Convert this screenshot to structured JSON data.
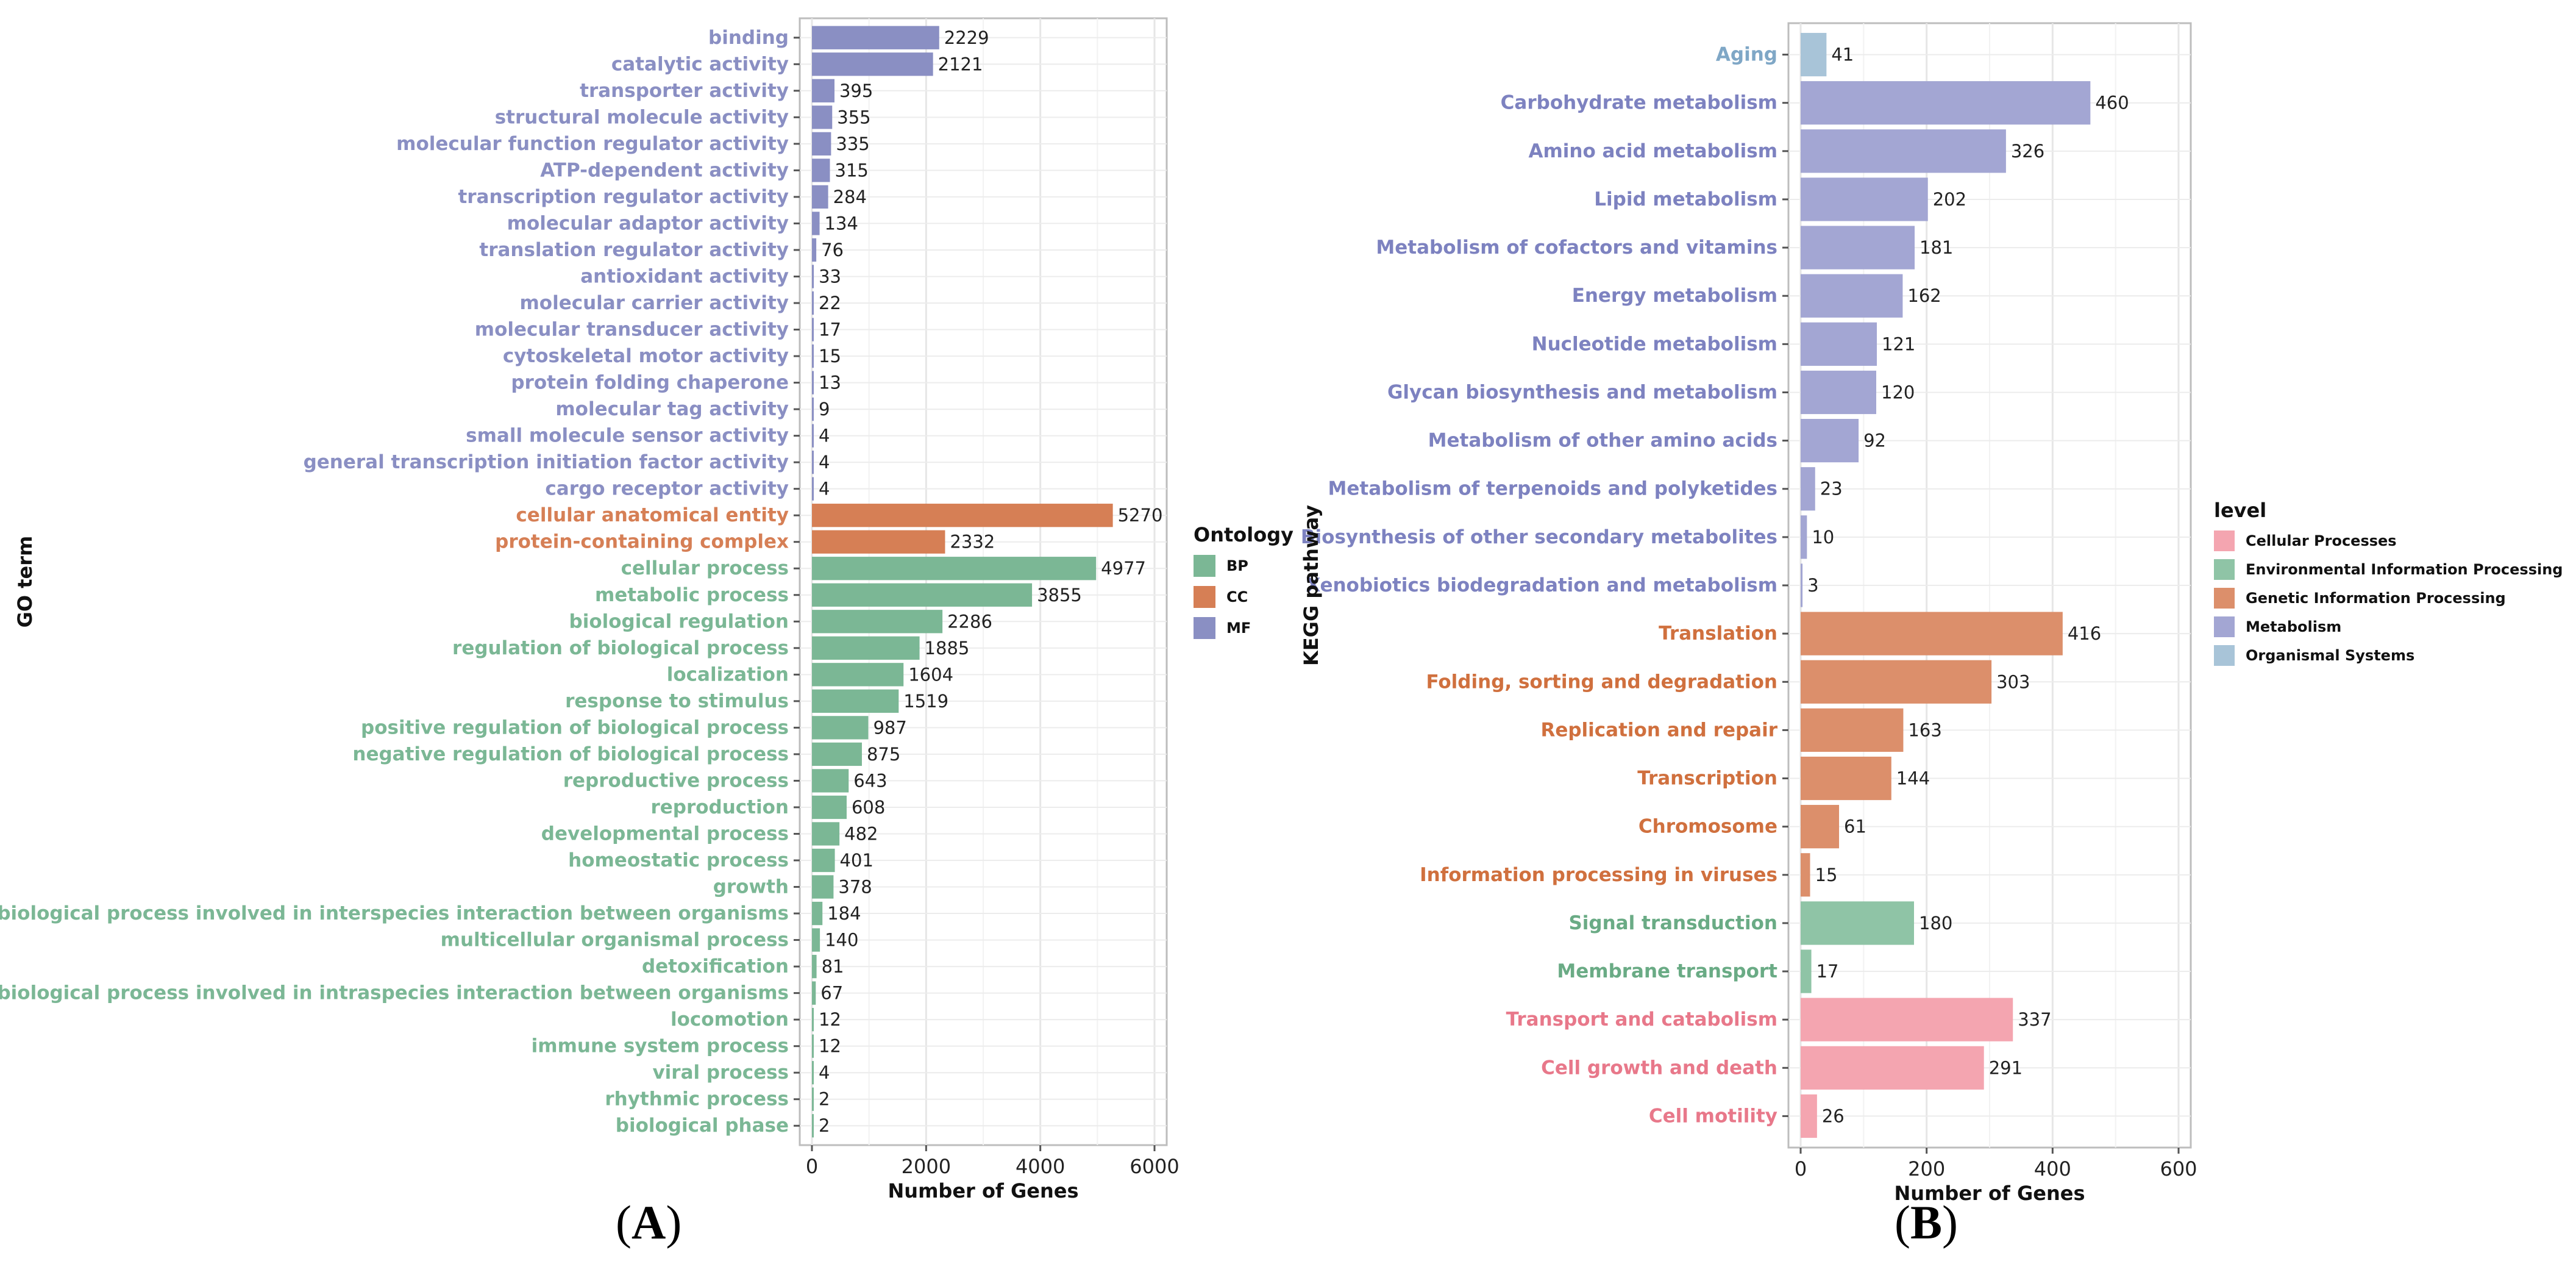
{
  "chart_data": [
    {
      "type": "bar",
      "orientation": "horizontal",
      "panel_label": "A",
      "title": "",
      "xlabel": "Number of Genes",
      "ylabel": "GO term",
      "xlim": [
        0,
        6000
      ],
      "xticks": [
        0,
        2000,
        4000,
        6000
      ],
      "grid": true,
      "legend": {
        "title": "Ontology",
        "placement": "right",
        "entries": [
          "BP",
          "CC",
          "MF"
        ]
      },
      "colors": {
        "BP": "#7bb795",
        "CC": "#d67f55",
        "MF": "#8a8fc3"
      },
      "categories": [
        {
          "label": "binding",
          "value": 2229,
          "group": "MF"
        },
        {
          "label": "catalytic activity",
          "value": 2121,
          "group": "MF"
        },
        {
          "label": "transporter activity",
          "value": 395,
          "group": "MF"
        },
        {
          "label": "structural molecule activity",
          "value": 355,
          "group": "MF"
        },
        {
          "label": "molecular function regulator activity",
          "value": 335,
          "group": "MF"
        },
        {
          "label": "ATP-dependent activity",
          "value": 315,
          "group": "MF"
        },
        {
          "label": "transcription regulator activity",
          "value": 284,
          "group": "MF"
        },
        {
          "label": "molecular adaptor activity",
          "value": 134,
          "group": "MF"
        },
        {
          "label": "translation regulator activity",
          "value": 76,
          "group": "MF"
        },
        {
          "label": "antioxidant activity",
          "value": 33,
          "group": "MF"
        },
        {
          "label": "molecular carrier activity",
          "value": 22,
          "group": "MF"
        },
        {
          "label": "molecular transducer activity",
          "value": 17,
          "group": "MF"
        },
        {
          "label": "cytoskeletal motor activity",
          "value": 15,
          "group": "MF"
        },
        {
          "label": "protein folding chaperone",
          "value": 13,
          "group": "MF"
        },
        {
          "label": "molecular tag activity",
          "value": 9,
          "group": "MF"
        },
        {
          "label": "small molecule sensor activity",
          "value": 4,
          "group": "MF"
        },
        {
          "label": "general transcription initiation factor activity",
          "value": 4,
          "group": "MF"
        },
        {
          "label": "cargo receptor activity",
          "value": 4,
          "group": "MF"
        },
        {
          "label": "cellular anatomical entity",
          "value": 5270,
          "group": "CC"
        },
        {
          "label": "protein-containing complex",
          "value": 2332,
          "group": "CC"
        },
        {
          "label": "cellular process",
          "value": 4977,
          "group": "BP"
        },
        {
          "label": "metabolic process",
          "value": 3855,
          "group": "BP"
        },
        {
          "label": "biological regulation",
          "value": 2286,
          "group": "BP"
        },
        {
          "label": "regulation of biological process",
          "value": 1885,
          "group": "BP"
        },
        {
          "label": "localization",
          "value": 1604,
          "group": "BP"
        },
        {
          "label": "response to stimulus",
          "value": 1519,
          "group": "BP"
        },
        {
          "label": "positive regulation of biological process",
          "value": 987,
          "group": "BP"
        },
        {
          "label": "negative regulation of biological process",
          "value": 875,
          "group": "BP"
        },
        {
          "label": "reproductive process",
          "value": 643,
          "group": "BP"
        },
        {
          "label": "reproduction",
          "value": 608,
          "group": "BP"
        },
        {
          "label": "developmental process",
          "value": 482,
          "group": "BP"
        },
        {
          "label": "homeostatic process",
          "value": 401,
          "group": "BP"
        },
        {
          "label": "growth",
          "value": 378,
          "group": "BP"
        },
        {
          "label": "biological process involved in interspecies interaction between organisms",
          "value": 184,
          "group": "BP"
        },
        {
          "label": "multicellular organismal process",
          "value": 140,
          "group": "BP"
        },
        {
          "label": "detoxification",
          "value": 81,
          "group": "BP"
        },
        {
          "label": "biological process involved in intraspecies interaction between organisms",
          "value": 67,
          "group": "BP"
        },
        {
          "label": "locomotion",
          "value": 12,
          "group": "BP"
        },
        {
          "label": "immune system process",
          "value": 12,
          "group": "BP"
        },
        {
          "label": "viral process",
          "value": 4,
          "group": "BP"
        },
        {
          "label": "rhythmic process",
          "value": 2,
          "group": "BP"
        },
        {
          "label": "biological phase",
          "value": 2,
          "group": "BP"
        }
      ]
    },
    {
      "type": "bar",
      "orientation": "horizontal",
      "panel_label": "B",
      "title": "",
      "xlabel": "Number of Genes",
      "ylabel": "KEGG pathway",
      "xlim": [
        0,
        600
      ],
      "xticks": [
        0,
        200,
        400,
        600
      ],
      "grid": true,
      "legend": {
        "title": "level",
        "placement": "right",
        "entries": [
          "Cellular Processes",
          "Environmental Information Processing",
          "Genetic Information Processing",
          "Metabolism",
          "Organismal Systems"
        ]
      },
      "colors": {
        "Cellular Processes": "#f4a5b0",
        "Environmental Information Processing": "#8fc4a6",
        "Genetic Information Processing": "#dc8f6b",
        "Metabolism": "#a3a6d3",
        "Organismal Systems": "#a8c4d8"
      },
      "label_colors": {
        "Cellular Processes": "#e8788a",
        "Environmental Information Processing": "#6aab85",
        "Genetic Information Processing": "#d0703e",
        "Metabolism": "#7d82c0",
        "Organismal Systems": "#7fa7c6"
      },
      "categories": [
        {
          "label": "Aging",
          "value": 41,
          "group": "Organismal Systems"
        },
        {
          "label": "Carbohydrate metabolism",
          "value": 460,
          "group": "Metabolism"
        },
        {
          "label": "Amino acid metabolism",
          "value": 326,
          "group": "Metabolism"
        },
        {
          "label": "Lipid metabolism",
          "value": 202,
          "group": "Metabolism"
        },
        {
          "label": "Metabolism of cofactors and vitamins",
          "value": 181,
          "group": "Metabolism"
        },
        {
          "label": "Energy metabolism",
          "value": 162,
          "group": "Metabolism"
        },
        {
          "label": "Nucleotide metabolism",
          "value": 121,
          "group": "Metabolism"
        },
        {
          "label": "Glycan biosynthesis and metabolism",
          "value": 120,
          "group": "Metabolism"
        },
        {
          "label": "Metabolism of other amino acids",
          "value": 92,
          "group": "Metabolism"
        },
        {
          "label": "Metabolism of terpenoids and polyketides",
          "value": 23,
          "group": "Metabolism"
        },
        {
          "label": "Biosynthesis of other secondary metabolites",
          "value": 10,
          "group": "Metabolism"
        },
        {
          "label": "Xenobiotics biodegradation and metabolism",
          "value": 3,
          "group": "Metabolism"
        },
        {
          "label": "Translation",
          "value": 416,
          "group": "Genetic Information Processing"
        },
        {
          "label": "Folding, sorting and degradation",
          "value": 303,
          "group": "Genetic Information Processing"
        },
        {
          "label": "Replication and repair",
          "value": 163,
          "group": "Genetic Information Processing"
        },
        {
          "label": "Transcription",
          "value": 144,
          "group": "Genetic Information Processing"
        },
        {
          "label": "Chromosome",
          "value": 61,
          "group": "Genetic Information Processing"
        },
        {
          "label": "Information processing in viruses",
          "value": 15,
          "group": "Genetic Information Processing"
        },
        {
          "label": "Signal transduction",
          "value": 180,
          "group": "Environmental Information Processing"
        },
        {
          "label": "Membrane transport",
          "value": 17,
          "group": "Environmental Information Processing"
        },
        {
          "label": "Transport and catabolism",
          "value": 337,
          "group": "Cellular Processes"
        },
        {
          "label": "Cell growth and death",
          "value": 291,
          "group": "Cellular Processes"
        },
        {
          "label": "Cell motility",
          "value": 26,
          "group": "Cellular Processes"
        }
      ]
    }
  ],
  "captions": {
    "panel_a": "A",
    "panel_b": "B"
  }
}
